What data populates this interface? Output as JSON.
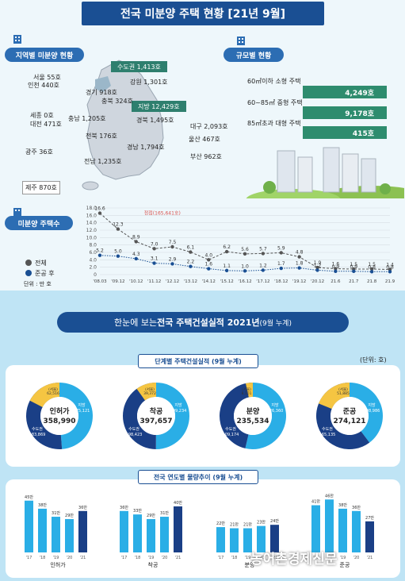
{
  "title": "전국 미분양 주택 현황 [21년 9월]",
  "region_section": {
    "label": "지역별 미분양 현황",
    "capital": "수도권 1,413호",
    "provincial": "지방 12,429호",
    "regions": [
      "서울 55호",
      "인천 440호",
      "경기 918호",
      "강원 1,301호",
      "충북 324호",
      "세종 0호",
      "대전 471호",
      "충남 1,205호",
      "경북 1,495호",
      "대구 2,093호",
      "전북 176호",
      "울산 467호",
      "광주 36호",
      "경남 1,794호",
      "부산 962호",
      "전남 1,235호",
      "제주 870호"
    ]
  },
  "size_section": {
    "label": "규모별 현황",
    "items": [
      {
        "label": "60㎡이하 소형 주택",
        "value": "4,249호"
      },
      {
        "label": "60~85㎡ 중형 주택",
        "value": "9,178호"
      },
      {
        "label": "85㎡초과 대형 주택",
        "value": "415호"
      }
    ]
  },
  "trend_section": {
    "label": "미분양 주택수",
    "legend_total": "전체",
    "legend_completed": "준공 후",
    "unit": "단위 : 만 호",
    "annotation": "정점(165,641호)"
  },
  "bottom": {
    "banner_pre": "한눈에 보는 ",
    "banner_bold": "전국 주택건설실적 2021년",
    "banner_post": " (9월 누계)",
    "unit": "(단위: 호)",
    "stage_title": "단계별 주택건설실적 (9월 누계)",
    "yearly_title": "전국 연도별 물량추이 (9월 누계)",
    "watermark": "농어촌경제신문"
  },
  "chart_data": [
    {
      "type": "line",
      "x": [
        "'08.03",
        "'09.12",
        "'10.12",
        "'11.12",
        "'12.12",
        "'13.12",
        "'14.12",
        "'15.12",
        "'16.12",
        "'17.12",
        "'18.12",
        "'19.12",
        "'20.12",
        "21.6",
        "21.7",
        "21.8",
        "21.9"
      ],
      "series": [
        {
          "name": "전체",
          "values": [
            16.6,
            12.3,
            8.9,
            7.0,
            7.5,
            6.1,
            4.0,
            6.2,
            5.6,
            5.7,
            5.9,
            4.8,
            1.9,
            1.6,
            1.5,
            1.5,
            1.4
          ]
        },
        {
          "name": "준공 후",
          "values": [
            5.2,
            5.0,
            4.3,
            3.1,
            2.9,
            2.2,
            1.6,
            1.1,
            1.0,
            1.2,
            1.7,
            1.8,
            1.2,
            0.9,
            0.9,
            0.8,
            0.8
          ]
        }
      ],
      "ylim": [
        0,
        18
      ],
      "yticks": [
        "0",
        "2.0",
        "4.0",
        "6.0",
        "8.0",
        "10.0",
        "12.0",
        "14.0",
        "16.0",
        "18.0"
      ]
    },
    {
      "type": "pie",
      "donuts": [
        {
          "name": "인허가",
          "total": "358,990",
          "capital_label": "수도권",
          "capital": "183,869",
          "local_label": "지방",
          "local": "175,121",
          "small_label": "(서울)",
          "small": "62,516",
          "capital_v": 183869,
          "local_v": 175121,
          "small_v": 62516
        },
        {
          "name": "착공",
          "total": "397,657",
          "capital_label": "수도권",
          "capital": "198,423",
          "local_label": "지방",
          "local": "199,234",
          "small_label": "(서울)",
          "small": "39,372",
          "capital_v": 198423,
          "local_v": 199234,
          "small_v": 39372
        },
        {
          "name": "분양",
          "total": "235,534",
          "capital_label": "수도권",
          "capital": "109,174",
          "local_label": "지방",
          "local": "126,360",
          "small_label": "(서울)",
          "small": "8,101",
          "capital_v": 109174,
          "local_v": 126360,
          "small_v": 8101
        },
        {
          "name": "준공",
          "total": "274,121",
          "capital_label": "수도권",
          "capital": "165,135",
          "local_label": "지방",
          "local": "108,986",
          "small_label": "(서울)",
          "small": "51,885",
          "capital_v": 165135,
          "local_v": 108986,
          "small_v": 51885
        }
      ]
    },
    {
      "type": "bar",
      "groups": [
        {
          "name": "인허가",
          "years": [
            "'17",
            "'18",
            "'19",
            "'20",
            "'21"
          ],
          "labels": [
            "45만",
            "38만",
            "31만",
            "29만",
            "36만"
          ],
          "values": [
            45,
            38,
            31,
            29,
            36
          ]
        },
        {
          "name": "착공",
          "years": [
            "'17",
            "'18",
            "'19",
            "'20",
            "'21"
          ],
          "labels": [
            "36만",
            "33만",
            "29만",
            "31만",
            "40만"
          ],
          "values": [
            36,
            33,
            29,
            31,
            40
          ]
        },
        {
          "name": "분양",
          "years": [
            "'17",
            "'18",
            "'19",
            "'20",
            "'21"
          ],
          "labels": [
            "22만",
            "21만",
            "21만",
            "23만",
            "24만"
          ],
          "values": [
            22,
            21,
            21,
            23,
            24
          ]
        },
        {
          "name": "준공",
          "years": [
            "'17",
            "'18",
            "'19",
            "'20",
            "'21"
          ],
          "labels": [
            "41만",
            "46만",
            "38만",
            "36만",
            "27만"
          ],
          "values": [
            41,
            46,
            38,
            36,
            27
          ]
        }
      ]
    }
  ]
}
